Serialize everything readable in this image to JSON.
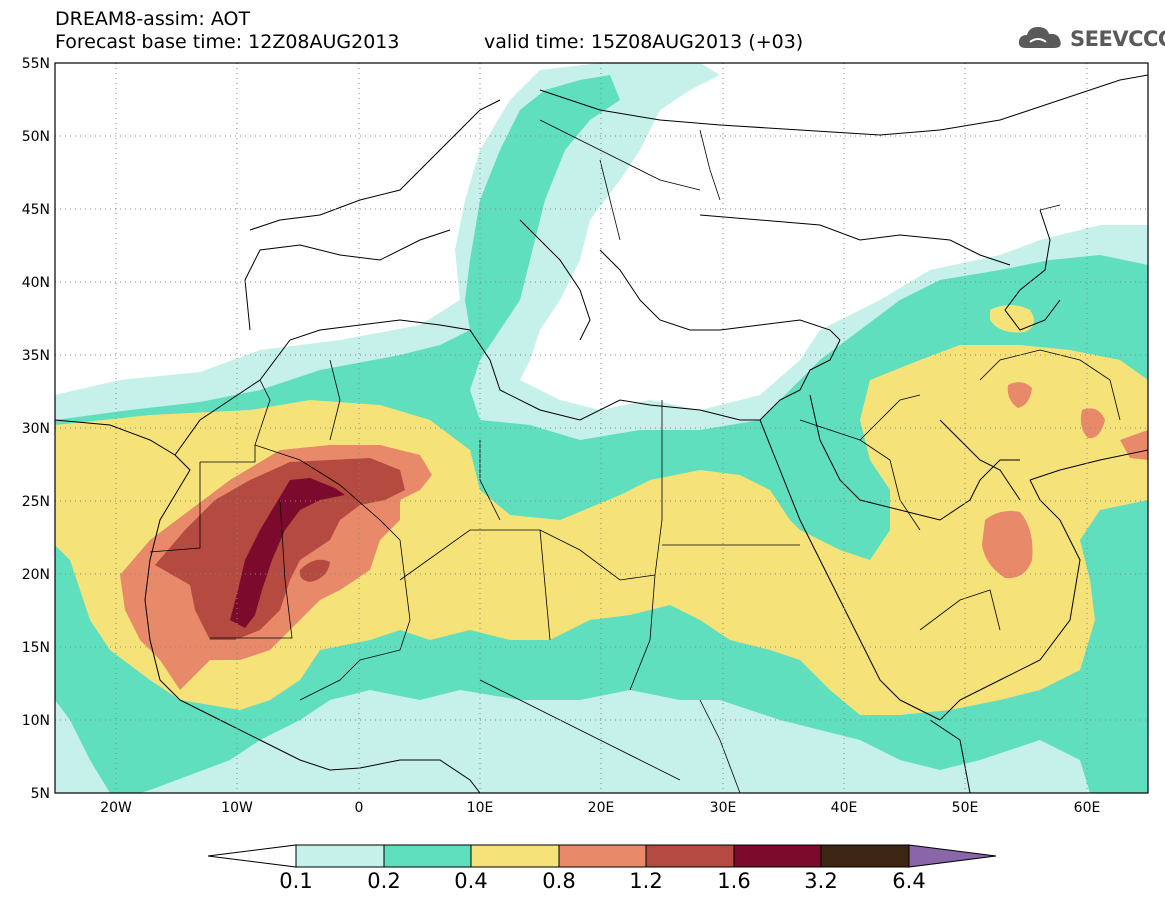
{
  "header": {
    "title": "DREAM8-assim: AOT",
    "base_time_label": "Forecast base time: 12Z08AUG2013",
    "valid_time_label": "valid time: 15Z08AUG2013 (+03)",
    "logo_text": "SEEVCCC"
  },
  "map": {
    "projection": "lat-lon",
    "lon_range": [
      -25,
      65
    ],
    "lat_range": [
      5,
      55
    ],
    "grid": "dotted",
    "lat_ticks": [
      "55N",
      "50N",
      "45N",
      "40N",
      "35N",
      "30N",
      "25N",
      "20N",
      "15N",
      "10N",
      "5N"
    ],
    "lon_ticks": [
      "20W",
      "10W",
      "0",
      "10E",
      "20E",
      "30E",
      "40E",
      "50E",
      "60E"
    ]
  },
  "colorbar": {
    "levels": [
      "0.1",
      "0.2",
      "0.4",
      "0.8",
      "1.2",
      "1.6",
      "3.2",
      "6.4"
    ],
    "colors": {
      "lt01": "#ffffff",
      "c1": "#c6f0ea",
      "c2": "#5fdfbe",
      "c3": "#f5e37a",
      "c4": "#e8896a",
      "c5": "#b54a40",
      "c6": "#7c0a2c",
      "c7": "#3d2514",
      "gt64": "#8866a8"
    }
  }
}
